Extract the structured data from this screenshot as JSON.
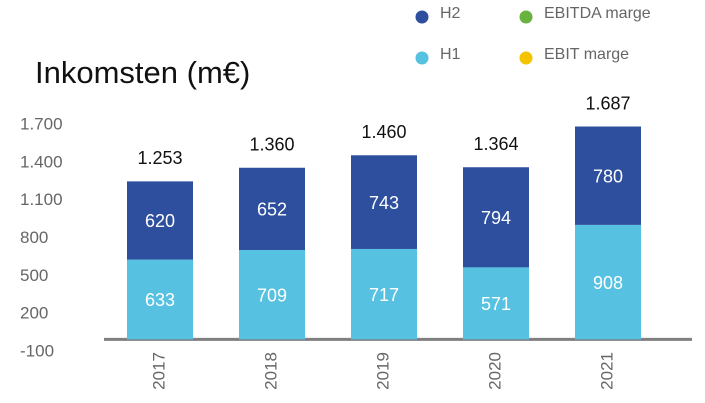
{
  "chart_data": {
    "type": "stacked_bar",
    "title": "Inkomsten (m€)",
    "categories": [
      "2017",
      "2018",
      "2019",
      "2020",
      "2021"
    ],
    "series": [
      {
        "name": "H1",
        "color": "#56c1e1",
        "values": [
          633,
          709,
          717,
          571,
          908
        ]
      },
      {
        "name": "H2",
        "color": "#2d4f9d",
        "values": [
          620,
          652,
          743,
          794,
          780
        ]
      },
      {
        "name": "EBITDA marge",
        "color": "#6ab23e",
        "values": [
          null,
          null,
          null,
          null,
          null
        ]
      },
      {
        "name": "EBIT marge",
        "color": "#f5c400",
        "values": [
          null,
          null,
          null,
          null,
          null
        ]
      }
    ],
    "totals": {
      "values": [
        1253,
        1360,
        1460,
        1364,
        1687
      ],
      "value_labels": [
        "1.253",
        "1.360",
        "1.460",
        "1.364",
        "1.687"
      ]
    },
    "ylim": [
      -100,
      1700
    ],
    "yticks": [
      -100,
      200,
      500,
      800,
      {
        "value": 1100,
        "label": "1.100"
      },
      {
        "value": 1400,
        "label": "1.400"
      },
      {
        "value": 1700,
        "label": "1.700"
      }
    ],
    "grid": false
  }
}
